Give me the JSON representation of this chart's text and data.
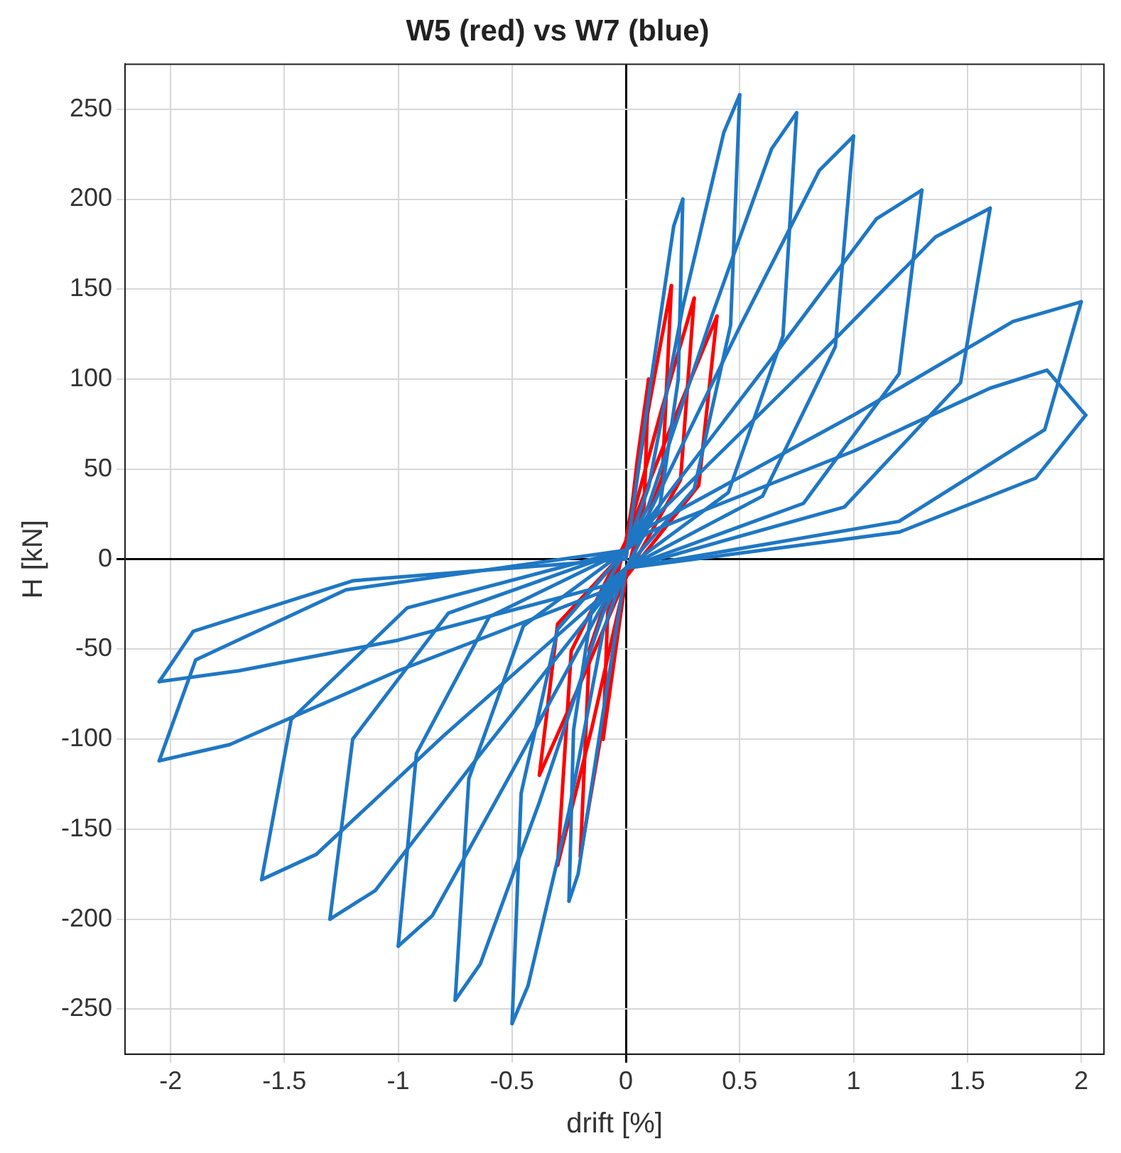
{
  "chart_data": {
    "type": "line",
    "title": "W5 (red) vs W7 (blue)",
    "xlabel": "drift [%]",
    "ylabel": "H [kN]",
    "xlim": [
      -2.2,
      2.1
    ],
    "ylim": [
      -275,
      275
    ],
    "xticks": [
      -2,
      -1.5,
      -1,
      -0.5,
      0,
      0.5,
      1,
      1.5,
      2
    ],
    "yticks": [
      -250,
      -200,
      -150,
      -100,
      -50,
      0,
      50,
      100,
      150,
      200,
      250
    ],
    "grid": true,
    "legend": false,
    "marker": "none",
    "line_style": "solid",
    "series": [
      {
        "color": "#1f77c4",
        "x": [
          0,
          0.1,
          0.21,
          0.25,
          0.23,
          0.15,
          0,
          -0.1,
          -0.21,
          -0.25,
          -0.23,
          -0.15,
          0,
          0.1,
          0.25,
          0.43,
          0.5,
          0.46,
          0.3,
          0,
          -0.1,
          -0.25,
          -0.43,
          -0.5,
          -0.46,
          -0.3,
          0,
          0.1,
          0.38,
          0.64,
          0.75,
          0.69,
          0.45,
          0,
          -0.1,
          -0.38,
          -0.64,
          -0.75,
          -0.69,
          -0.45,
          0,
          0.1,
          0.5,
          0.85,
          1.0,
          0.92,
          0.6,
          0,
          -0.1,
          -0.5,
          -0.85,
          -1.0,
          -0.92,
          -0.6,
          0,
          0.1,
          0.65,
          1.1,
          1.3,
          1.2,
          0.78,
          0,
          -0.1,
          -0.65,
          -1.1,
          -1.3,
          -1.2,
          -0.78,
          0,
          0.1,
          0.8,
          1.36,
          1.6,
          1.47,
          0.96,
          0,
          -0.1,
          -0.8,
          -1.36,
          -1.6,
          -1.47,
          -0.96,
          0,
          0.1,
          1.0,
          1.7,
          2.0,
          1.84,
          1.2,
          0,
          -0.1,
          -1.0,
          -1.74,
          -2.05,
          -1.89,
          -1.23,
          0,
          0.1,
          1.0,
          1.6,
          1.85,
          2.02,
          1.8,
          1.2,
          0,
          -0.1,
          -1.0,
          -1.7,
          -2.05,
          -1.9,
          -1.2,
          0
        ],
        "values": [
          0,
          90,
          185,
          200,
          100,
          30,
          -5,
          -85,
          -175,
          -190,
          -95,
          -28,
          5,
          40,
          140,
          237,
          258,
          130,
          39,
          -5,
          -40,
          -140,
          -237,
          -258,
          -130,
          -39,
          5,
          30,
          136,
          228,
          248,
          124,
          37,
          -5,
          -30,
          -135,
          -225,
          -245,
          -122,
          -37,
          5,
          25,
          129,
          216,
          235,
          118,
          35,
          -5,
          -25,
          -118,
          -198,
          -215,
          -108,
          -32,
          5,
          22,
          113,
          189,
          205,
          103,
          31,
          -5,
          -22,
          -110,
          -184,
          -200,
          -100,
          -30,
          5,
          20,
          107,
          179,
          195,
          98,
          29,
          -5,
          -20,
          -98,
          -164,
          -178,
          -89,
          -27,
          5,
          18,
          80,
          132,
          143,
          72,
          21,
          -5,
          -18,
          -62,
          -103,
          -112,
          -56,
          -17,
          5,
          15,
          60,
          95,
          105,
          80,
          45,
          15,
          -5,
          -15,
          -45,
          -62,
          -68,
          -40,
          -12,
          0
        ]
      },
      {
        "color": "#ff0000",
        "x": [
          0,
          0.05,
          0.1,
          0.08,
          0,
          -0.05,
          -0.1,
          -0.08,
          0,
          0.1,
          0.2,
          0.16,
          0,
          -0.1,
          -0.2,
          -0.16,
          0,
          0.15,
          0.3,
          0.24,
          0,
          -0.15,
          -0.3,
          -0.24,
          0,
          0.2,
          0.4,
          0.32,
          0,
          -0.19,
          -0.38,
          -0.3,
          0
        ],
        "values": [
          0,
          55,
          100,
          30,
          -10,
          -55,
          -100,
          -30,
          10,
          84,
          152,
          46,
          -10,
          -91,
          -165,
          -50,
          10,
          80,
          145,
          44,
          -10,
          -94,
          -170,
          -51,
          10,
          74,
          135,
          41,
          -10,
          -66,
          -120,
          -36,
          5
        ]
      }
    ]
  }
}
